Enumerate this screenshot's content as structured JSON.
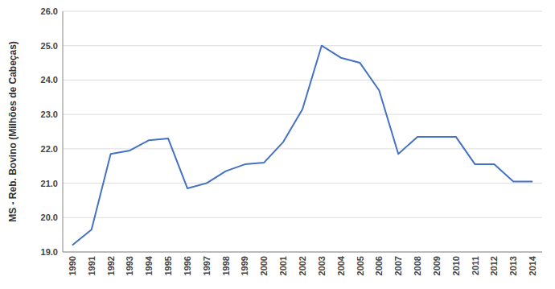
{
  "chart_data": {
    "type": "line",
    "y_label": "MS - Reb. Bovino (Milhões de Cabeças)",
    "x": [
      1990,
      1991,
      1992,
      1993,
      1994,
      1995,
      1996,
      1997,
      1998,
      1999,
      2000,
      2001,
      2002,
      2003,
      2004,
      2005,
      2006,
      2007,
      2008,
      2009,
      2010,
      2011,
      2012,
      2013,
      2014
    ],
    "values": [
      19.2,
      19.65,
      21.85,
      21.95,
      22.25,
      22.3,
      20.85,
      21.0,
      21.35,
      21.55,
      21.6,
      22.2,
      23.15,
      25.0,
      24.65,
      24.5,
      23.7,
      21.85,
      22.35,
      22.35,
      22.35,
      21.55,
      21.55,
      21.05,
      21.05
    ],
    "color": "#4472C4",
    "xlim": [
      1989.5,
      2014.5
    ],
    "xticks": [
      1990,
      1991,
      1992,
      1993,
      1994,
      1995,
      1996,
      1997,
      1998,
      1999,
      2000,
      2001,
      2002,
      2003,
      2004,
      2005,
      2006,
      2007,
      2008,
      2009,
      2010,
      2011,
      2012,
      2013,
      2014
    ],
    "ylim": [
      19.0,
      26.0
    ],
    "yticks": [
      {
        "value": 19.0,
        "label": "19.0"
      },
      {
        "value": 20.0,
        "label": "20.0"
      },
      {
        "value": 21.0,
        "label": "21.0"
      },
      {
        "value": 22.0,
        "label": "22.0"
      },
      {
        "value": 23.0,
        "label": "23.0"
      },
      {
        "value": 24.0,
        "label": "24.0"
      },
      {
        "value": 25.0,
        "label": "25.0"
      },
      {
        "value": 26.0,
        "label": "26.0"
      }
    ],
    "grid": true
  }
}
